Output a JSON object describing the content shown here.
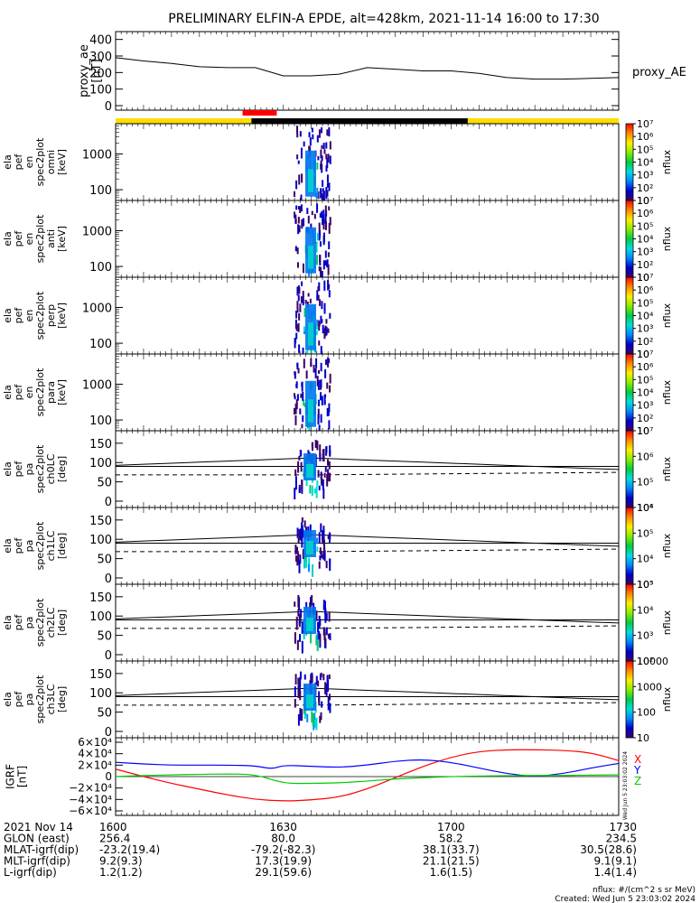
{
  "title": "PRELIMINARY ELFIN-A EPDE, alt=428km, 2021-11-14 16:00 to 17:30",
  "colors": {
    "yellow": "#ffdd00",
    "red": "#ff0000",
    "black": "#000000",
    "bx": "#ff0000",
    "by": "#0000ff",
    "bz": "#00cc00"
  },
  "chart_data": [
    {
      "type": "line",
      "name": "proxy_ae",
      "ylabel": "proxy_ae\n[nT]",
      "legend": "proxy_AE",
      "ylim": [
        0,
        420
      ],
      "yticks": [
        "0",
        "100",
        "200",
        "300",
        "400"
      ],
      "x": [
        "16:00",
        "16:05",
        "16:10",
        "16:15",
        "16:20",
        "16:25",
        "16:27",
        "16:30",
        "16:35",
        "16:40",
        "16:45",
        "16:50",
        "16:55",
        "17:00",
        "17:05",
        "17:10",
        "17:15",
        "17:20",
        "17:25",
        "17:30"
      ],
      "values": [
        290,
        270,
        255,
        235,
        230,
        230,
        210,
        180,
        180,
        190,
        230,
        220,
        210,
        210,
        195,
        170,
        160,
        160,
        165,
        170
      ]
    },
    {
      "type": "bar",
      "name": "region-bar",
      "segments": [
        {
          "from": 0.0,
          "to": 0.27,
          "color": "yellow"
        },
        {
          "from": 0.27,
          "to": 0.7,
          "color": "black"
        },
        {
          "from": 0.7,
          "to": 1.0,
          "color": "yellow"
        }
      ],
      "marker": {
        "from": 0.22,
        "to": 0.27,
        "color": "red"
      }
    },
    {
      "type": "heatmap",
      "name": "energy-omni",
      "ylabel": "ela\npef\nen\nspec2plot\nomni\n[keV]",
      "ylim_log": [
        50,
        7000
      ],
      "yticks": [
        "100",
        "1000"
      ],
      "cbar_label": "nflux",
      "cbar_ticks": [
        "10",
        "10²",
        "10³",
        "10⁴",
        "10⁵",
        "10⁶",
        "10⁷"
      ]
    },
    {
      "type": "heatmap",
      "name": "energy-anti",
      "ylabel": "ela\npef\nen\nspec2plot\nanti\n[keV]",
      "ylim_log": [
        50,
        7000
      ],
      "yticks": [
        "100",
        "1000"
      ],
      "cbar_label": "nflux",
      "cbar_ticks": [
        "10",
        "10²",
        "10³",
        "10⁴",
        "10⁵",
        "10⁶",
        "10⁷"
      ]
    },
    {
      "type": "heatmap",
      "name": "energy-perp",
      "ylabel": "ela\npef\nen\nspec2plot\nperp\n[keV]",
      "ylim_log": [
        50,
        7000
      ],
      "yticks": [
        "100",
        "1000"
      ],
      "cbar_label": "nflux",
      "cbar_ticks": [
        "10",
        "10²",
        "10³",
        "10⁴",
        "10⁵",
        "10⁶",
        "10⁷"
      ]
    },
    {
      "type": "heatmap",
      "name": "energy-para",
      "ylabel": "ela\npef\nen\nspec2plot\npara\n[keV]",
      "ylim_log": [
        50,
        7000
      ],
      "yticks": [
        "100",
        "1000"
      ],
      "cbar_label": "nflux",
      "cbar_ticks": [
        "10",
        "10²",
        "10³",
        "10⁴",
        "10⁵",
        "10⁶",
        "10⁷"
      ]
    },
    {
      "type": "heatmap",
      "name": "pa-ch0",
      "ylabel": "ela\npef\npa\nspec2plot\nch0LC\n[deg]",
      "ylim": [
        0,
        180
      ],
      "yticks": [
        "0",
        "50",
        "100",
        "150"
      ],
      "cbar_label": "nflux",
      "cbar_ticks": [
        "10⁴",
        "10⁵",
        "10⁶",
        "10⁷"
      ]
    },
    {
      "type": "heatmap",
      "name": "pa-ch1",
      "ylabel": "ela\npef\npa\nspec2plot\nch1LC\n[deg]",
      "ylim": [
        0,
        180
      ],
      "yticks": [
        "0",
        "50",
        "100",
        "150"
      ],
      "cbar_label": "nflux",
      "cbar_ticks": [
        "10³",
        "10⁴",
        "10⁵",
        "10⁶"
      ]
    },
    {
      "type": "heatmap",
      "name": "pa-ch2",
      "ylabel": "ela\npef\npa\nspec2plot\nch2LC\n[deg]",
      "ylim": [
        0,
        180
      ],
      "yticks": [
        "0",
        "50",
        "100",
        "150"
      ],
      "cbar_label": "nflux",
      "cbar_ticks": [
        "10²",
        "10³",
        "10⁴",
        "10⁵"
      ]
    },
    {
      "type": "heatmap",
      "name": "pa-ch3",
      "ylabel": "ela\npef\npa\nspec2plot\nch3LC\n[deg]",
      "ylim": [
        0,
        180
      ],
      "yticks": [
        "0",
        "50",
        "100",
        "150"
      ],
      "cbar_label": "nflux",
      "cbar_ticks": [
        "10",
        "100",
        "1000",
        "10000"
      ]
    },
    {
      "type": "line",
      "name": "igrf",
      "ylabel": "IGRF\n[nT]",
      "ylim": [
        -60000,
        60000
      ],
      "yticks": [
        "−6×10⁴",
        "−4×10⁴",
        "−2×10⁴",
        "0",
        "2×10⁴",
        "4×10⁴",
        "6×10⁴"
      ],
      "legend": [
        "X",
        "Y",
        "Z"
      ],
      "series": [
        {
          "name": "X",
          "color": "bx",
          "x": [
            0,
            5,
            10,
            15,
            20,
            25,
            30,
            35,
            40,
            45,
            50,
            55,
            60,
            65,
            70,
            75,
            80,
            85,
            90
          ],
          "values": [
            13000,
            0,
            -12000,
            -22000,
            -32000,
            -40000,
            -43000,
            -41000,
            -36000,
            -22000,
            -2000,
            18000,
            34000,
            44000,
            47000,
            47000,
            46000,
            42000,
            28000
          ]
        },
        {
          "name": "Y",
          "color": "by",
          "x": [
            0,
            5,
            10,
            15,
            20,
            25,
            28,
            30,
            35,
            40,
            45,
            50,
            55,
            60,
            65,
            70,
            75,
            80,
            85,
            90
          ],
          "values": [
            25000,
            22000,
            20000,
            20000,
            20000,
            19000,
            13000,
            20000,
            18000,
            16000,
            20000,
            27000,
            30000,
            25000,
            15000,
            5000,
            0,
            5000,
            15000,
            23000
          ]
        },
        {
          "name": "Z",
          "color": "bz",
          "x": [
            0,
            5,
            10,
            15,
            20,
            25,
            30,
            35,
            40,
            45,
            50,
            55,
            60,
            65,
            70,
            75,
            80,
            85,
            90
          ],
          "values": [
            0,
            2000,
            3000,
            4000,
            4500,
            4000,
            -12000,
            -12000,
            -11000,
            -8000,
            -4000,
            -2000,
            0,
            1000,
            1500,
            2000,
            2000,
            2500,
            3000
          ]
        }
      ]
    }
  ],
  "xaxis_rows": [
    {
      "label": "2021 Nov 14",
      "vals": [
        "1600",
        "1630",
        "1700",
        "1730"
      ]
    },
    {
      "label": "GLON (east)",
      "vals": [
        "256.4",
        "80.0",
        "58.2",
        "234.5"
      ]
    },
    {
      "label": "MLAT-igrf(dip)",
      "vals": [
        "-23.2(19.4)",
        "-79.2(-82.3)",
        "38.1(33.7)",
        "30.5(28.6)"
      ]
    },
    {
      "label": "MLT-igrf(dip)",
      "vals": [
        "9.2(9.3)",
        "17.3(19.9)",
        "21.1(21.5)",
        "9.1(9.1)"
      ]
    },
    {
      "label": "L-igrf(dip)",
      "vals": [
        "1.2(1.2)",
        "29.1(59.6)",
        "1.6(1.5)",
        "1.4(1.4)"
      ]
    }
  ],
  "footer": {
    "units": "nflux: #/(cm^2 s sr MeV)",
    "created": "Created: Wed Jun  5 23:03:02 2024",
    "stamp": "Wed Jun  5 23:03:02 2024"
  }
}
